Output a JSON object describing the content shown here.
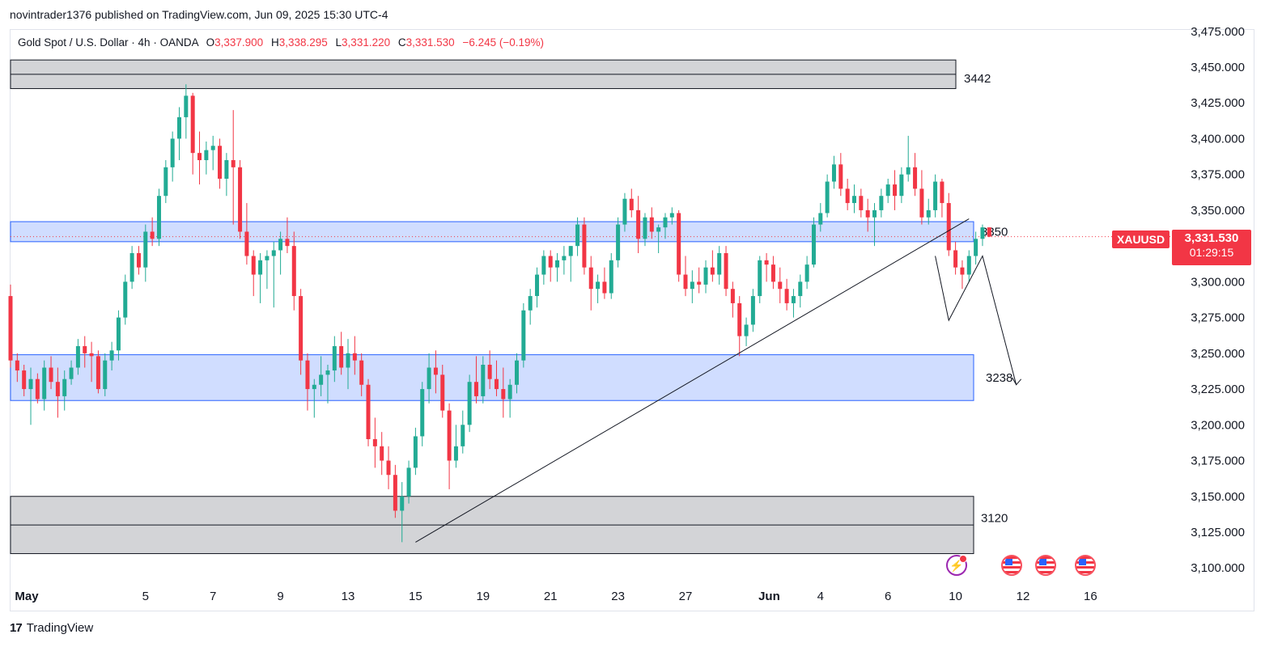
{
  "header": {
    "published": "novintrader1376 published on TradingView.com, Jun 09, 2025 15:30 UTC-4"
  },
  "legend": {
    "symbol": "Gold Spot / U.S. Dollar · 4h · OANDA",
    "o_label": "O",
    "o_value": "3,337.900",
    "h_label": "H",
    "h_value": "3,338.295",
    "l_label": "L",
    "l_value": "3,331.220",
    "c_label": "C",
    "c_value": "3,331.530",
    "change": "−6.245 (−0.19%)"
  },
  "price_axis": {
    "ticks": [
      3100,
      3125,
      3150,
      3175,
      3200,
      3225,
      3250,
      3275,
      3300,
      3325,
      3350,
      3375,
      3400,
      3425,
      3450,
      3475
    ],
    "tick_labels": [
      "3,100.000",
      "3,125.000",
      "3,150.000",
      "3,175.000",
      "3,200.000",
      "3,225.000",
      "3,250.000",
      "3,275.000",
      "3,300.000",
      "3,325.000",
      "3,350.000",
      "3,375.000",
      "3,400.000",
      "3,425.000",
      "3,450.000",
      "3,475.000"
    ],
    "current_price": 3331.53,
    "current_price_label": "3,331.530",
    "countdown": "01:29:15",
    "symbol_badge": "XAUUSD"
  },
  "time_axis": {
    "labels": [
      {
        "text": "May",
        "t": 0,
        "bold": true
      },
      {
        "text": "5",
        "t": 20
      },
      {
        "text": "7",
        "t": 30
      },
      {
        "text": "9",
        "t": 40
      },
      {
        "text": "13",
        "t": 50
      },
      {
        "text": "15",
        "t": 60
      },
      {
        "text": "19",
        "t": 70
      },
      {
        "text": "21",
        "t": 80
      },
      {
        "text": "23",
        "t": 90
      },
      {
        "text": "27",
        "t": 100
      },
      {
        "text": "Jun",
        "t": 110,
        "bold": true
      },
      {
        "text": "4",
        "t": 120
      },
      {
        "text": "6",
        "t": 130
      },
      {
        "text": "10",
        "t": 140
      },
      {
        "text": "12",
        "t": 150
      },
      {
        "text": "16",
        "t": 160
      }
    ]
  },
  "chart_data": {
    "type": "candlestick",
    "symbol": "XAUUSD",
    "timeframe": "4h",
    "ylim": [
      3090,
      3480
    ],
    "candles": [
      [
        3290,
        3298,
        3240,
        3245
      ],
      [
        3245,
        3250,
        3230,
        3238
      ],
      [
        3238,
        3242,
        3220,
        3225
      ],
      [
        3225,
        3240,
        3200,
        3232
      ],
      [
        3232,
        3236,
        3215,
        3218
      ],
      [
        3218,
        3245,
        3210,
        3240
      ],
      [
        3240,
        3248,
        3225,
        3230
      ],
      [
        3230,
        3240,
        3205,
        3220
      ],
      [
        3220,
        3238,
        3210,
        3232
      ],
      [
        3232,
        3245,
        3228,
        3240
      ],
      [
        3240,
        3260,
        3235,
        3255
      ],
      [
        3255,
        3262,
        3240,
        3250
      ],
      [
        3250,
        3258,
        3230,
        3248
      ],
      [
        3248,
        3252,
        3222,
        3225
      ],
      [
        3225,
        3250,
        3220,
        3245
      ],
      [
        3245,
        3258,
        3238,
        3252
      ],
      [
        3252,
        3280,
        3245,
        3275
      ],
      [
        3275,
        3305,
        3270,
        3300
      ],
      [
        3300,
        3325,
        3295,
        3320
      ],
      [
        3320,
        3325,
        3305,
        3310
      ],
      [
        3310,
        3340,
        3300,
        3335
      ],
      [
        3335,
        3345,
        3325,
        3330
      ],
      [
        3330,
        3365,
        3325,
        3360
      ],
      [
        3360,
        3385,
        3355,
        3380
      ],
      [
        3380,
        3405,
        3370,
        3400
      ],
      [
        3400,
        3422,
        3385,
        3415
      ],
      [
        3415,
        3438,
        3400,
        3430
      ],
      [
        3430,
        3432,
        3375,
        3390
      ],
      [
        3390,
        3405,
        3368,
        3385
      ],
      [
        3385,
        3398,
        3375,
        3392
      ],
      [
        3392,
        3402,
        3378,
        3395
      ],
      [
        3395,
        3400,
        3365,
        3372
      ],
      [
        3372,
        3390,
        3360,
        3385
      ],
      [
        3385,
        3420,
        3340,
        3380
      ],
      [
        3380,
        3385,
        3330,
        3335
      ],
      [
        3335,
        3355,
        3312,
        3318
      ],
      [
        3318,
        3322,
        3290,
        3305
      ],
      [
        3305,
        3320,
        3285,
        3315
      ],
      [
        3315,
        3322,
        3295,
        3318
      ],
      [
        3318,
        3328,
        3282,
        3322
      ],
      [
        3322,
        3335,
        3305,
        3330
      ],
      [
        3330,
        3345,
        3320,
        3325
      ],
      [
        3325,
        3335,
        3280,
        3290
      ],
      [
        3290,
        3295,
        3235,
        3245
      ],
      [
        3245,
        3250,
        3210,
        3225
      ],
      [
        3225,
        3232,
        3205,
        3228
      ],
      [
        3228,
        3248,
        3220,
        3235
      ],
      [
        3235,
        3242,
        3215,
        3238
      ],
      [
        3238,
        3262,
        3230,
        3255
      ],
      [
        3255,
        3265,
        3235,
        3240
      ],
      [
        3240,
        3260,
        3225,
        3250
      ],
      [
        3250,
        3262,
        3235,
        3245
      ],
      [
        3245,
        3250,
        3220,
        3228
      ],
      [
        3228,
        3232,
        3185,
        3190
      ],
      [
        3190,
        3205,
        3170,
        3185
      ],
      [
        3185,
        3195,
        3165,
        3175
      ],
      [
        3175,
        3185,
        3155,
        3165
      ],
      [
        3165,
        3172,
        3135,
        3140
      ],
      [
        3140,
        3160,
        3118,
        3150
      ],
      [
        3150,
        3175,
        3145,
        3170
      ],
      [
        3170,
        3198,
        3165,
        3192
      ],
      [
        3192,
        3230,
        3185,
        3225
      ],
      [
        3225,
        3250,
        3215,
        3240
      ],
      [
        3240,
        3252,
        3222,
        3235
      ],
      [
        3235,
        3242,
        3205,
        3210
      ],
      [
        3210,
        3215,
        3155,
        3175
      ],
      [
        3175,
        3200,
        3170,
        3185
      ],
      [
        3185,
        3210,
        3180,
        3200
      ],
      [
        3200,
        3235,
        3195,
        3230
      ],
      [
        3230,
        3248,
        3215,
        3220
      ],
      [
        3220,
        3248,
        3215,
        3242
      ],
      [
        3242,
        3252,
        3225,
        3232
      ],
      [
        3232,
        3245,
        3220,
        3225
      ],
      [
        3225,
        3240,
        3205,
        3218
      ],
      [
        3218,
        3232,
        3205,
        3228
      ],
      [
        3228,
        3250,
        3222,
        3245
      ],
      [
        3245,
        3285,
        3240,
        3280
      ],
      [
        3280,
        3295,
        3270,
        3290
      ],
      [
        3290,
        3310,
        3282,
        3305
      ],
      [
        3305,
        3322,
        3298,
        3318
      ],
      [
        3318,
        3322,
        3300,
        3310
      ],
      [
        3310,
        3320,
        3300,
        3315
      ],
      [
        3315,
        3325,
        3305,
        3318
      ],
      [
        3318,
        3325,
        3300,
        3325
      ],
      [
        3325,
        3345,
        3318,
        3340
      ],
      [
        3340,
        3345,
        3305,
        3310
      ],
      [
        3310,
        3318,
        3280,
        3295
      ],
      [
        3295,
        3305,
        3285,
        3300
      ],
      [
        3300,
        3310,
        3288,
        3292
      ],
      [
        3292,
        3320,
        3288,
        3315
      ],
      [
        3315,
        3345,
        3310,
        3340
      ],
      [
        3340,
        3362,
        3335,
        3358
      ],
      [
        3358,
        3365,
        3345,
        3350
      ],
      [
        3350,
        3360,
        3320,
        3330
      ],
      [
        3330,
        3348,
        3325,
        3345
      ],
      [
        3345,
        3352,
        3330,
        3335
      ],
      [
        3335,
        3340,
        3320,
        3338
      ],
      [
        3338,
        3348,
        3330,
        3345
      ],
      [
        3345,
        3352,
        3340,
        3348
      ],
      [
        3348,
        3350,
        3300,
        3305
      ],
      [
        3305,
        3318,
        3290,
        3295
      ],
      [
        3295,
        3308,
        3285,
        3300
      ],
      [
        3300,
        3310,
        3292,
        3298
      ],
      [
        3298,
        3315,
        3292,
        3310
      ],
      [
        3310,
        3322,
        3300,
        3305
      ],
      [
        3305,
        3325,
        3298,
        3320
      ],
      [
        3320,
        3325,
        3290,
        3295
      ],
      [
        3295,
        3300,
        3275,
        3285
      ],
      [
        3285,
        3290,
        3248,
        3262
      ],
      [
        3262,
        3275,
        3255,
        3270
      ],
      [
        3270,
        3295,
        3265,
        3290
      ],
      [
        3290,
        3318,
        3285,
        3315
      ],
      [
        3315,
        3320,
        3300,
        3312
      ],
      [
        3312,
        3318,
        3295,
        3300
      ],
      [
        3300,
        3310,
        3285,
        3295
      ],
      [
        3295,
        3302,
        3280,
        3285
      ],
      [
        3285,
        3295,
        3275,
        3290
      ],
      [
        3290,
        3305,
        3282,
        3300
      ],
      [
        3300,
        3318,
        3295,
        3312
      ],
      [
        3312,
        3345,
        3310,
        3340
      ],
      [
        3340,
        3355,
        3335,
        3348
      ],
      [
        3348,
        3375,
        3345,
        3370
      ],
      [
        3370,
        3388,
        3365,
        3382
      ],
      [
        3382,
        3390,
        3360,
        3365
      ],
      [
        3365,
        3372,
        3350,
        3355
      ],
      [
        3355,
        3368,
        3348,
        3360
      ],
      [
        3360,
        3365,
        3345,
        3350
      ],
      [
        3350,
        3358,
        3335,
        3345
      ],
      [
        3345,
        3355,
        3325,
        3350
      ],
      [
        3350,
        3365,
        3345,
        3360
      ],
      [
        3360,
        3372,
        3355,
        3368
      ],
      [
        3368,
        3378,
        3350,
        3360
      ],
      [
        3360,
        3380,
        3355,
        3375
      ],
      [
        3375,
        3402,
        3370,
        3380
      ],
      [
        3380,
        3390,
        3360,
        3365
      ],
      [
        3365,
        3378,
        3340,
        3345
      ],
      [
        3345,
        3358,
        3340,
        3350
      ],
      [
        3350,
        3375,
        3345,
        3370
      ],
      [
        3370,
        3372,
        3345,
        3355
      ],
      [
        3355,
        3362,
        3318,
        3322
      ],
      [
        3322,
        3328,
        3305,
        3310
      ],
      [
        3310,
        3315,
        3295,
        3305
      ],
      [
        3305,
        3322,
        3300,
        3318
      ],
      [
        3318,
        3335,
        3312,
        3330
      ],
      [
        3330,
        3340,
        3325,
        3338
      ],
      [
        3338,
        3338,
        3331.22,
        3331.53
      ]
    ],
    "zones": [
      {
        "name": "resistance-3442",
        "from": 3435,
        "to": 3455,
        "label": "3442",
        "color": "#d1d4dc"
      },
      {
        "name": "zone-3350",
        "from": 3328,
        "to": 3342,
        "label": "3350",
        "color": "#c9d4f8"
      },
      {
        "name": "zone-3238",
        "from": 3217,
        "to": 3249,
        "label": "3238",
        "color": "#c9d4f8"
      },
      {
        "name": "support-3120",
        "from": 3110,
        "to": 3150,
        "label": "3120",
        "color": "#d1d4dc"
      }
    ],
    "trendline": {
      "from": [
        60,
        3118
      ],
      "to": [
        142,
        3344
      ]
    },
    "projection": [
      [
        137,
        3318
      ],
      [
        139,
        3273
      ],
      [
        144,
        3318
      ],
      [
        149,
        3228
      ]
    ]
  }
}
